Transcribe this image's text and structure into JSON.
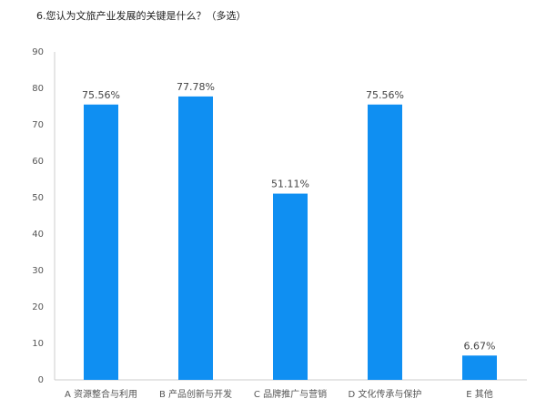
{
  "chart_data": {
    "type": "bar",
    "title": "6.您认为文旅产业发展的关键是什么？（多选）",
    "categories": [
      "A 资源整合与利用",
      "B 产品创新与开发",
      "C 品牌推广与营销",
      "D 文化传承与保护",
      "E 其他"
    ],
    "values": [
      75.56,
      77.78,
      51.11,
      75.56,
      6.67
    ],
    "value_labels": [
      "75.56%",
      "77.78%",
      "51.11%",
      "75.56%",
      "6.67%"
    ],
    "color": "#0f8ff2",
    "ylim": [
      0,
      90
    ],
    "yticks": [
      0,
      10,
      20,
      30,
      40,
      50,
      60,
      70,
      80,
      90
    ],
    "grid": false
  }
}
